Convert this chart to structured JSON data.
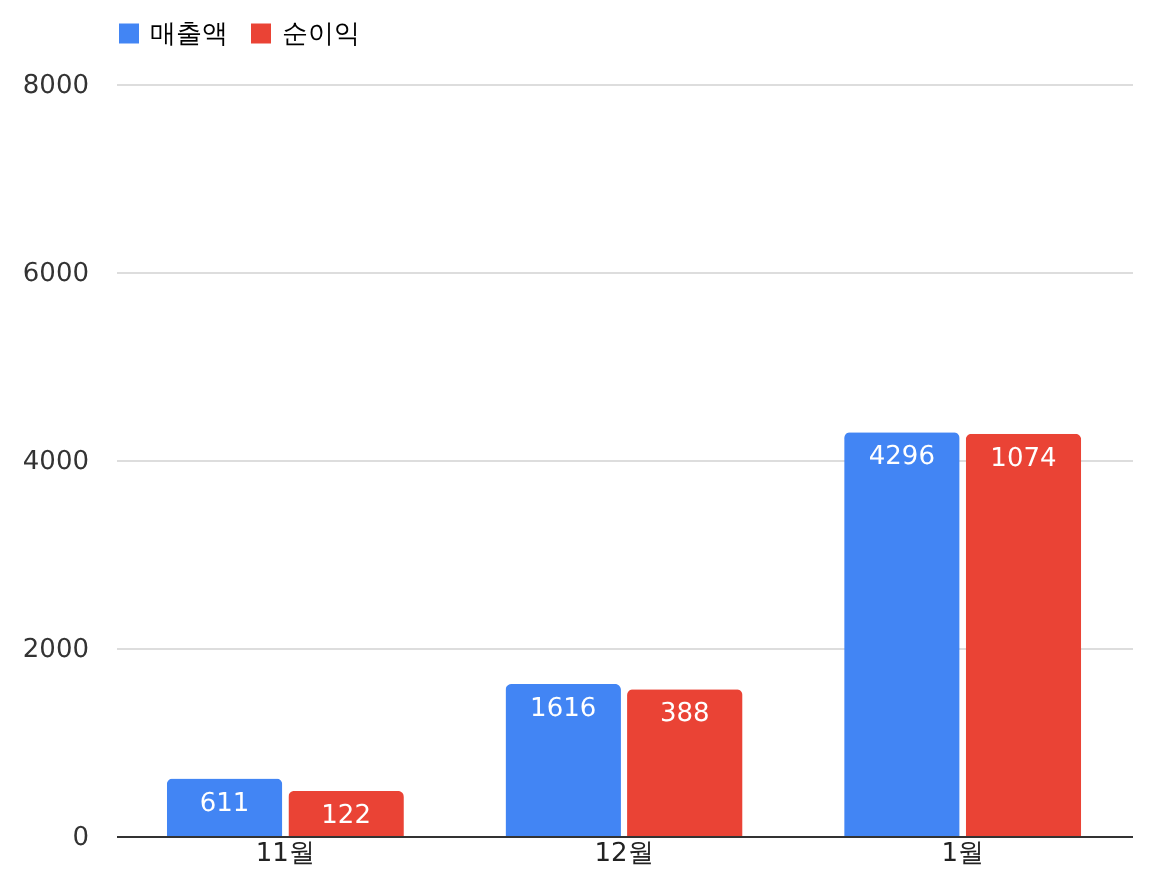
{
  "chart_data": {
    "type": "bar",
    "categories": [
      "11월",
      "12월",
      "1월"
    ],
    "series": [
      {
        "name": "매출액",
        "color": "#4285f4",
        "values": [
          611,
          1616,
          4296
        ],
        "value_labels": [
          "611",
          "1616",
          "4296"
        ]
      },
      {
        "name": "순이익",
        "color": "#ea4335",
        "values": [
          480,
          1560,
          4280
        ]
      }
    ],
    "annotations": [
      {
        "text": "122",
        "x": "11월",
        "y": 480
      },
      {
        "text": "388",
        "x": "12월",
        "y": 1560
      },
      {
        "text": "1074",
        "x": "1월",
        "y": 4280
      }
    ],
    "ylim": [
      0,
      8000
    ],
    "yticks": [
      0,
      2000,
      4000,
      6000,
      8000
    ],
    "grid": "y",
    "legend": "top"
  }
}
